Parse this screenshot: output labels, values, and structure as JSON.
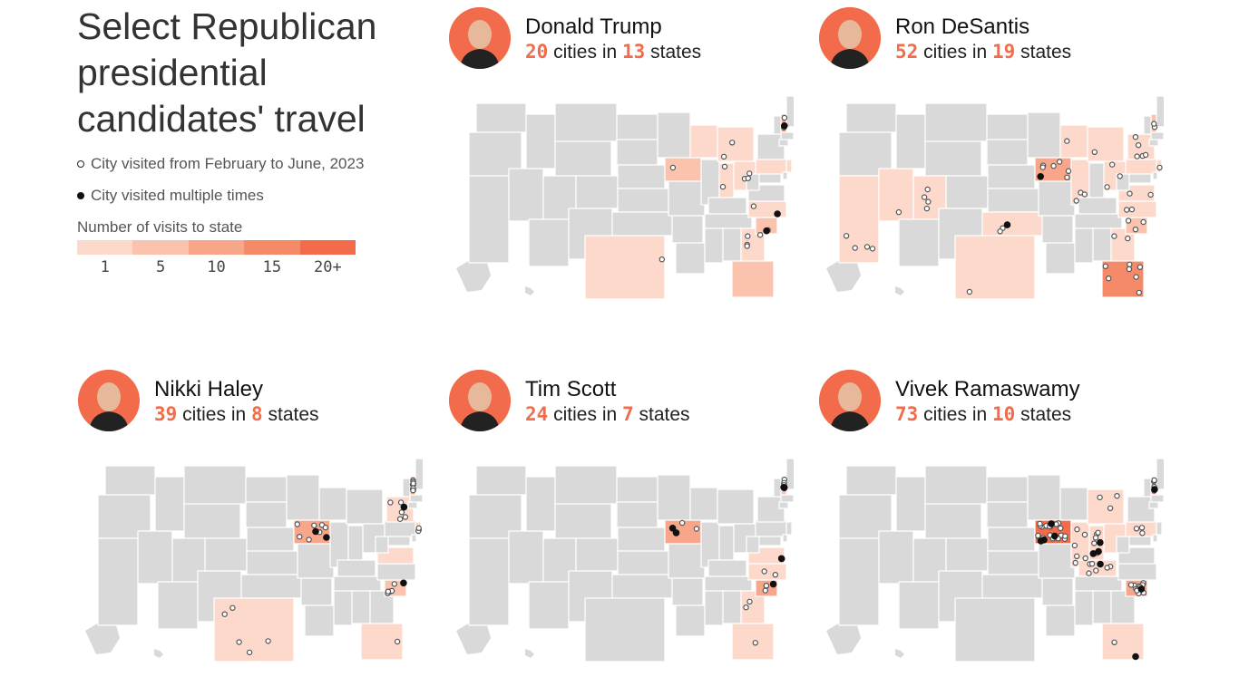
{
  "title": "Select Republican presidential candidates' travel",
  "legend": {
    "single_visit": "City visited from February to June, 2023",
    "multiple_visits": "City visited multiple times",
    "scale_title": "Number of visits to state",
    "scale_labels": [
      "1",
      "5",
      "10",
      "15",
      "20+"
    ],
    "scale_colors": [
      "#fdd9cb",
      "#fbc2ad",
      "#f8a68a",
      "#f58a68",
      "#f26b4a"
    ]
  },
  "colors": {
    "accent": "#f26b4a",
    "state_default": "#d9d9d9",
    "state_border": "#ffffff",
    "dot_single_fill": "#ffffff",
    "dot_multi_fill": "#111111"
  },
  "candidates": [
    {
      "name": "Donald Trump",
      "cities": "20",
      "cities_word": "cities in",
      "states": "13",
      "states_word": "states",
      "avatar_icon": "trump-portrait-icon",
      "states_visited": [
        {
          "state": "IA",
          "level": 2
        },
        {
          "state": "NH",
          "level": 3
        },
        {
          "state": "SC",
          "level": 2
        },
        {
          "state": "FL",
          "level": 2
        },
        {
          "state": "TX",
          "level": 1
        },
        {
          "state": "MI",
          "level": 1
        },
        {
          "state": "OH",
          "level": 1
        },
        {
          "state": "IN",
          "level": 1
        },
        {
          "state": "PA",
          "level": 1
        },
        {
          "state": "NC",
          "level": 1
        },
        {
          "state": "GA",
          "level": 1
        },
        {
          "state": "NJ",
          "level": 1
        },
        {
          "state": "WI",
          "level": 1
        }
      ],
      "single_cities": 17,
      "multi_cities": 3
    },
    {
      "name": "Ron DeSantis",
      "cities": "52",
      "cities_word": "cities in",
      "states": "19",
      "states_word": "states",
      "avatar_icon": "desantis-portrait-icon",
      "states_visited": [
        {
          "state": "IA",
          "level": 3
        },
        {
          "state": "FL",
          "level": 4
        },
        {
          "state": "NH",
          "level": 2
        },
        {
          "state": "SC",
          "level": 2
        },
        {
          "state": "NC",
          "level": 1
        },
        {
          "state": "GA",
          "level": 1
        },
        {
          "state": "TX",
          "level": 1
        },
        {
          "state": "OK",
          "level": 1
        },
        {
          "state": "NV",
          "level": 1
        },
        {
          "state": "CA",
          "level": 1
        },
        {
          "state": "UT",
          "level": 1
        },
        {
          "state": "IL",
          "level": 1
        },
        {
          "state": "MI",
          "level": 1
        },
        {
          "state": "OH",
          "level": 1
        },
        {
          "state": "PA",
          "level": 1
        },
        {
          "state": "NY",
          "level": 1
        },
        {
          "state": "VA",
          "level": 1
        },
        {
          "state": "WI",
          "level": 1
        },
        {
          "state": "NJ",
          "level": 1
        }
      ],
      "single_cities": 50,
      "multi_cities": 2
    },
    {
      "name": "Nikki Haley",
      "cities": "39",
      "cities_word": "cities in",
      "states": "8",
      "states_word": "states",
      "avatar_icon": "haley-portrait-icon",
      "states_visited": [
        {
          "state": "IA",
          "level": 3
        },
        {
          "state": "NH",
          "level": 3
        },
        {
          "state": "SC",
          "level": 2
        },
        {
          "state": "TX",
          "level": 1
        },
        {
          "state": "FL",
          "level": 1
        },
        {
          "state": "VA",
          "level": 1
        },
        {
          "state": "NY",
          "level": 1
        },
        {
          "state": "NJ",
          "level": 1
        }
      ],
      "single_cities": 35,
      "multi_cities": 4
    },
    {
      "name": "Tim Scott",
      "cities": "24",
      "cities_word": "cities in",
      "states": "7",
      "states_word": "states",
      "avatar_icon": "scott-portrait-icon",
      "states_visited": [
        {
          "state": "IA",
          "level": 3
        },
        {
          "state": "SC",
          "level": 3
        },
        {
          "state": "NH",
          "level": 2
        },
        {
          "state": "GA",
          "level": 1
        },
        {
          "state": "FL",
          "level": 1
        },
        {
          "state": "NC",
          "level": 1
        },
        {
          "state": "VA",
          "level": 1
        }
      ],
      "single_cities": 18,
      "multi_cities": 6
    },
    {
      "name": "Vivek Ramaswamy",
      "cities": "73",
      "cities_word": "cities in",
      "states": "10",
      "states_word": "states",
      "avatar_icon": "ramaswamy-portrait-icon",
      "states_visited": [
        {
          "state": "IA",
          "level": 5
        },
        {
          "state": "NH",
          "level": 2
        },
        {
          "state": "SC",
          "level": 3
        },
        {
          "state": "OH",
          "level": 1
        },
        {
          "state": "MI",
          "level": 1
        },
        {
          "state": "IN",
          "level": 1
        },
        {
          "state": "KY",
          "level": 1
        },
        {
          "state": "PA",
          "level": 1
        },
        {
          "state": "IL",
          "level": 1
        },
        {
          "state": "FL",
          "level": 1
        }
      ],
      "single_cities": 62,
      "multi_cities": 11
    }
  ]
}
